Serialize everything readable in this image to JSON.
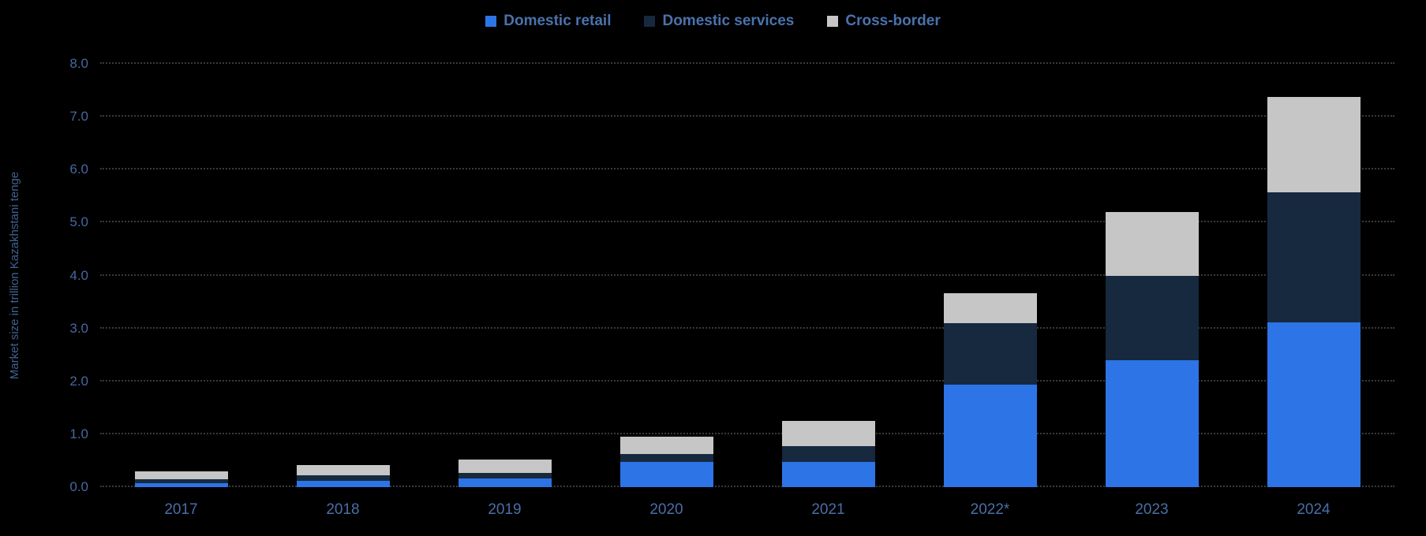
{
  "chart_data": {
    "type": "bar",
    "stacked": true,
    "title": "",
    "ylabel": "Market size in trillion Kazakhstani tenge",
    "xlabel": "",
    "ylim": [
      0,
      8
    ],
    "yticks": [
      "0.0",
      "1.0",
      "2.0",
      "3.0",
      "4.0",
      "5.0",
      "6.0",
      "7.0",
      "8.0"
    ],
    "grid": "dotted horizontal",
    "legend_position": "top-center",
    "categories": [
      "2017",
      "2018",
      "2019",
      "2020",
      "2021",
      "2022*",
      "2023",
      "2024"
    ],
    "series": [
      {
        "name": "Domestic retail",
        "color": "#2d74e7",
        "values": [
          0.08,
          0.12,
          0.17,
          0.48,
          0.47,
          1.93,
          2.4,
          3.12
        ]
      },
      {
        "name": "Domestic services",
        "color": "#16293f",
        "values": [
          0.07,
          0.1,
          0.1,
          0.14,
          0.31,
          1.17,
          1.6,
          2.45
        ]
      },
      {
        "name": "Cross-border",
        "color": "#c6c6c6",
        "values": [
          0.15,
          0.2,
          0.25,
          0.33,
          0.47,
          0.57,
          1.2,
          1.8
        ]
      }
    ]
  },
  "colors": {
    "background": "#000000",
    "gridline": "#3a3a3a",
    "axis_text": "#47689e",
    "legend_text": "#4a72ad"
  }
}
